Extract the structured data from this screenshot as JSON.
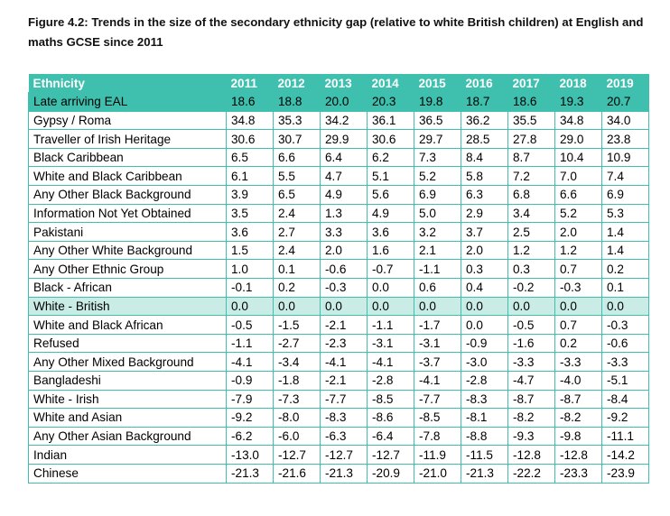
{
  "caption": "Figure 4.2: Trends in the size of the secondary ethnicity gap (relative to white British children) at English and maths GCSE since 2011",
  "table": {
    "headers": [
      "Ethnicity",
      "2011",
      "2012",
      "2013",
      "2014",
      "2015",
      "2016",
      "2017",
      "2018",
      "2019"
    ],
    "rows": [
      {
        "label": "Late arriving EAL",
        "values": [
          "18.6",
          "18.8",
          "20.0",
          "20.3",
          "19.8",
          "18.7",
          "18.6",
          "19.3",
          "20.7"
        ],
        "highlight": "dark"
      },
      {
        "label": "Gypsy / Roma",
        "values": [
          "34.8",
          "35.3",
          "34.2",
          "36.1",
          "36.5",
          "36.2",
          "35.5",
          "34.8",
          "34.0"
        ]
      },
      {
        "label": "Traveller of Irish Heritage",
        "values": [
          "30.6",
          "30.7",
          "29.9",
          "30.6",
          "29.7",
          "28.5",
          "27.8",
          "29.0",
          "23.8"
        ]
      },
      {
        "label": "Black Caribbean",
        "values": [
          "6.5",
          "6.6",
          "6.4",
          "6.2",
          "7.3",
          "8.4",
          "8.7",
          "10.4",
          "10.9"
        ]
      },
      {
        "label": "White and Black Caribbean",
        "values": [
          "6.1",
          "5.5",
          "4.7",
          "5.1",
          "5.2",
          "5.8",
          "7.2",
          "7.0",
          "7.4"
        ]
      },
      {
        "label": "Any Other Black Background",
        "values": [
          "3.9",
          "6.5",
          "4.9",
          "5.6",
          "6.9",
          "6.3",
          "6.8",
          "6.6",
          "6.9"
        ]
      },
      {
        "label": "Information Not Yet Obtained",
        "values": [
          "3.5",
          "2.4",
          "1.3",
          "4.9",
          "5.0",
          "2.9",
          "3.4",
          "5.2",
          "5.3"
        ]
      },
      {
        "label": "Pakistani",
        "values": [
          "3.6",
          "2.7",
          "3.3",
          "3.6",
          "3.2",
          "3.7",
          "2.5",
          "2.0",
          "1.4"
        ]
      },
      {
        "label": "Any Other White Background",
        "values": [
          "1.5",
          "2.4",
          "2.0",
          "1.6",
          "2.1",
          "2.0",
          "1.2",
          "1.2",
          "1.4"
        ]
      },
      {
        "label": "Any Other Ethnic Group",
        "values": [
          "1.0",
          "0.1",
          "-0.6",
          "-0.7",
          "-1.1",
          "0.3",
          "0.3",
          "0.7",
          "0.2"
        ]
      },
      {
        "label": "Black - African",
        "values": [
          "-0.1",
          "0.2",
          "-0.3",
          "0.0",
          "0.6",
          "0.4",
          "-0.2",
          "-0.3",
          "0.1"
        ]
      },
      {
        "label": "White - British",
        "values": [
          "0.0",
          "0.0",
          "0.0",
          "0.0",
          "0.0",
          "0.0",
          "0.0",
          "0.0",
          "0.0"
        ],
        "highlight": "light"
      },
      {
        "label": "White and Black African",
        "values": [
          "-0.5",
          "-1.5",
          "-2.1",
          "-1.1",
          "-1.7",
          "0.0",
          "-0.5",
          "0.7",
          "-0.3"
        ]
      },
      {
        "label": "Refused",
        "values": [
          "-1.1",
          "-2.7",
          "-2.3",
          "-3.1",
          "-3.1",
          "-0.9",
          "-1.6",
          "0.2",
          "-0.6"
        ]
      },
      {
        "label": "Any Other Mixed Background",
        "values": [
          "-4.1",
          "-3.4",
          "-4.1",
          "-4.1",
          "-3.7",
          "-3.0",
          "-3.3",
          "-3.3",
          "-3.3"
        ]
      },
      {
        "label": "Bangladeshi",
        "values": [
          "-0.9",
          "-1.8",
          "-2.1",
          "-2.8",
          "-4.1",
          "-2.8",
          "-4.7",
          "-4.0",
          "-5.1"
        ]
      },
      {
        "label": "White - Irish",
        "values": [
          "-7.9",
          "-7.3",
          "-7.7",
          "-8.5",
          "-7.7",
          "-8.3",
          "-8.7",
          "-8.7",
          "-8.4"
        ]
      },
      {
        "label": "White and Asian",
        "values": [
          "-9.2",
          "-8.0",
          "-8.3",
          "-8.6",
          "-8.5",
          "-8.1",
          "-8.2",
          "-8.2",
          "-9.2"
        ]
      },
      {
        "label": "Any Other Asian Background",
        "values": [
          "-6.2",
          "-6.0",
          "-6.3",
          "-6.4",
          "-7.8",
          "-8.8",
          "-9.3",
          "-9.8",
          "-11.1"
        ]
      },
      {
        "label": "Indian",
        "values": [
          "-13.0",
          "-12.7",
          "-12.7",
          "-12.7",
          "-11.9",
          "-11.5",
          "-12.8",
          "-12.8",
          "-14.2"
        ]
      },
      {
        "label": "Chinese",
        "values": [
          "-21.3",
          "-21.6",
          "-21.3",
          "-20.9",
          "-21.0",
          "-21.3",
          "-22.2",
          "-23.3",
          "-23.9"
        ]
      }
    ]
  },
  "colors": {
    "header_bg": "#3fbfad",
    "highlight_dark": "#3fbfad",
    "highlight_light": "#c9ece6",
    "border": "#3fbfad"
  }
}
